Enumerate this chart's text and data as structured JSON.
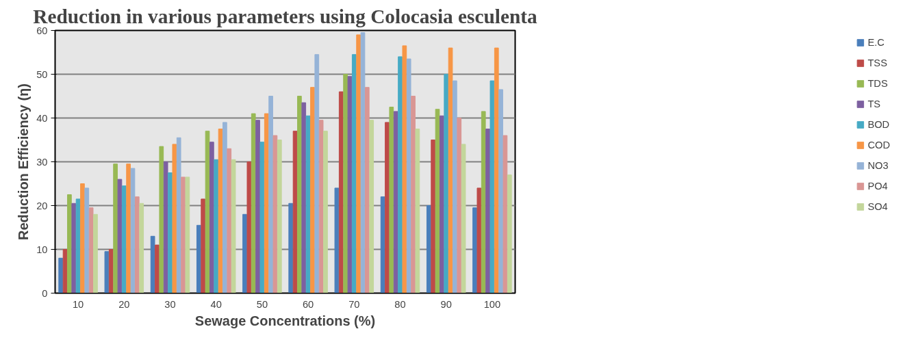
{
  "chart_data": {
    "type": "bar",
    "title": "Reduction in various parameters using Colocasia esculenta",
    "xlabel": "Sewage Concentrations (%)",
    "ylabel": "Reduction Efficiency (η)",
    "categories": [
      "10",
      "20",
      "30",
      "40",
      "50",
      "60",
      "70",
      "80",
      "90",
      "100"
    ],
    "ylim": [
      0,
      60
    ],
    "yticks": [
      0,
      10,
      20,
      30,
      40,
      50,
      60
    ],
    "grid": "y",
    "legend": "right",
    "series": [
      {
        "name": "E.C",
        "color": "#4a7ebb",
        "values": [
          8,
          9.5,
          13,
          15.5,
          18,
          20.5,
          24,
          22,
          20,
          19.5
        ]
      },
      {
        "name": "TSS",
        "color": "#be4b48",
        "values": [
          10,
          10,
          11,
          21.5,
          30,
          37,
          46,
          39,
          35,
          24
        ]
      },
      {
        "name": "TDS",
        "color": "#98b954",
        "values": [
          22.5,
          29.5,
          33.5,
          37,
          41,
          45,
          50,
          42.5,
          42,
          41.5
        ]
      },
      {
        "name": "TS",
        "color": "#7d60a0",
        "values": [
          20.5,
          26,
          30,
          34.5,
          39.5,
          43.5,
          49.5,
          41.5,
          40.5,
          37.5
        ]
      },
      {
        "name": "BOD",
        "color": "#46aac5",
        "values": [
          21.5,
          24.5,
          27.5,
          30.5,
          34.5,
          40.5,
          54.5,
          54,
          50,
          48.5
        ]
      },
      {
        "name": "COD",
        "color": "#f79646",
        "values": [
          25,
          29.5,
          34,
          37.5,
          41,
          47,
          59,
          56.5,
          56,
          56
        ]
      },
      {
        "name": "NO3",
        "color": "#95b3d7",
        "values": [
          24,
          28.5,
          35.5,
          39,
          45,
          54.5,
          59.5,
          53.5,
          48.5,
          46.5
        ]
      },
      {
        "name": "PO4",
        "color": "#d99694",
        "values": [
          19.5,
          22,
          26.5,
          33,
          36,
          39.5,
          47,
          45,
          40,
          36
        ]
      },
      {
        "name": "SO4",
        "color": "#c3d69b",
        "values": [
          18,
          20.5,
          26.5,
          30.5,
          35,
          37,
          39.5,
          37.5,
          34,
          27
        ]
      }
    ]
  }
}
